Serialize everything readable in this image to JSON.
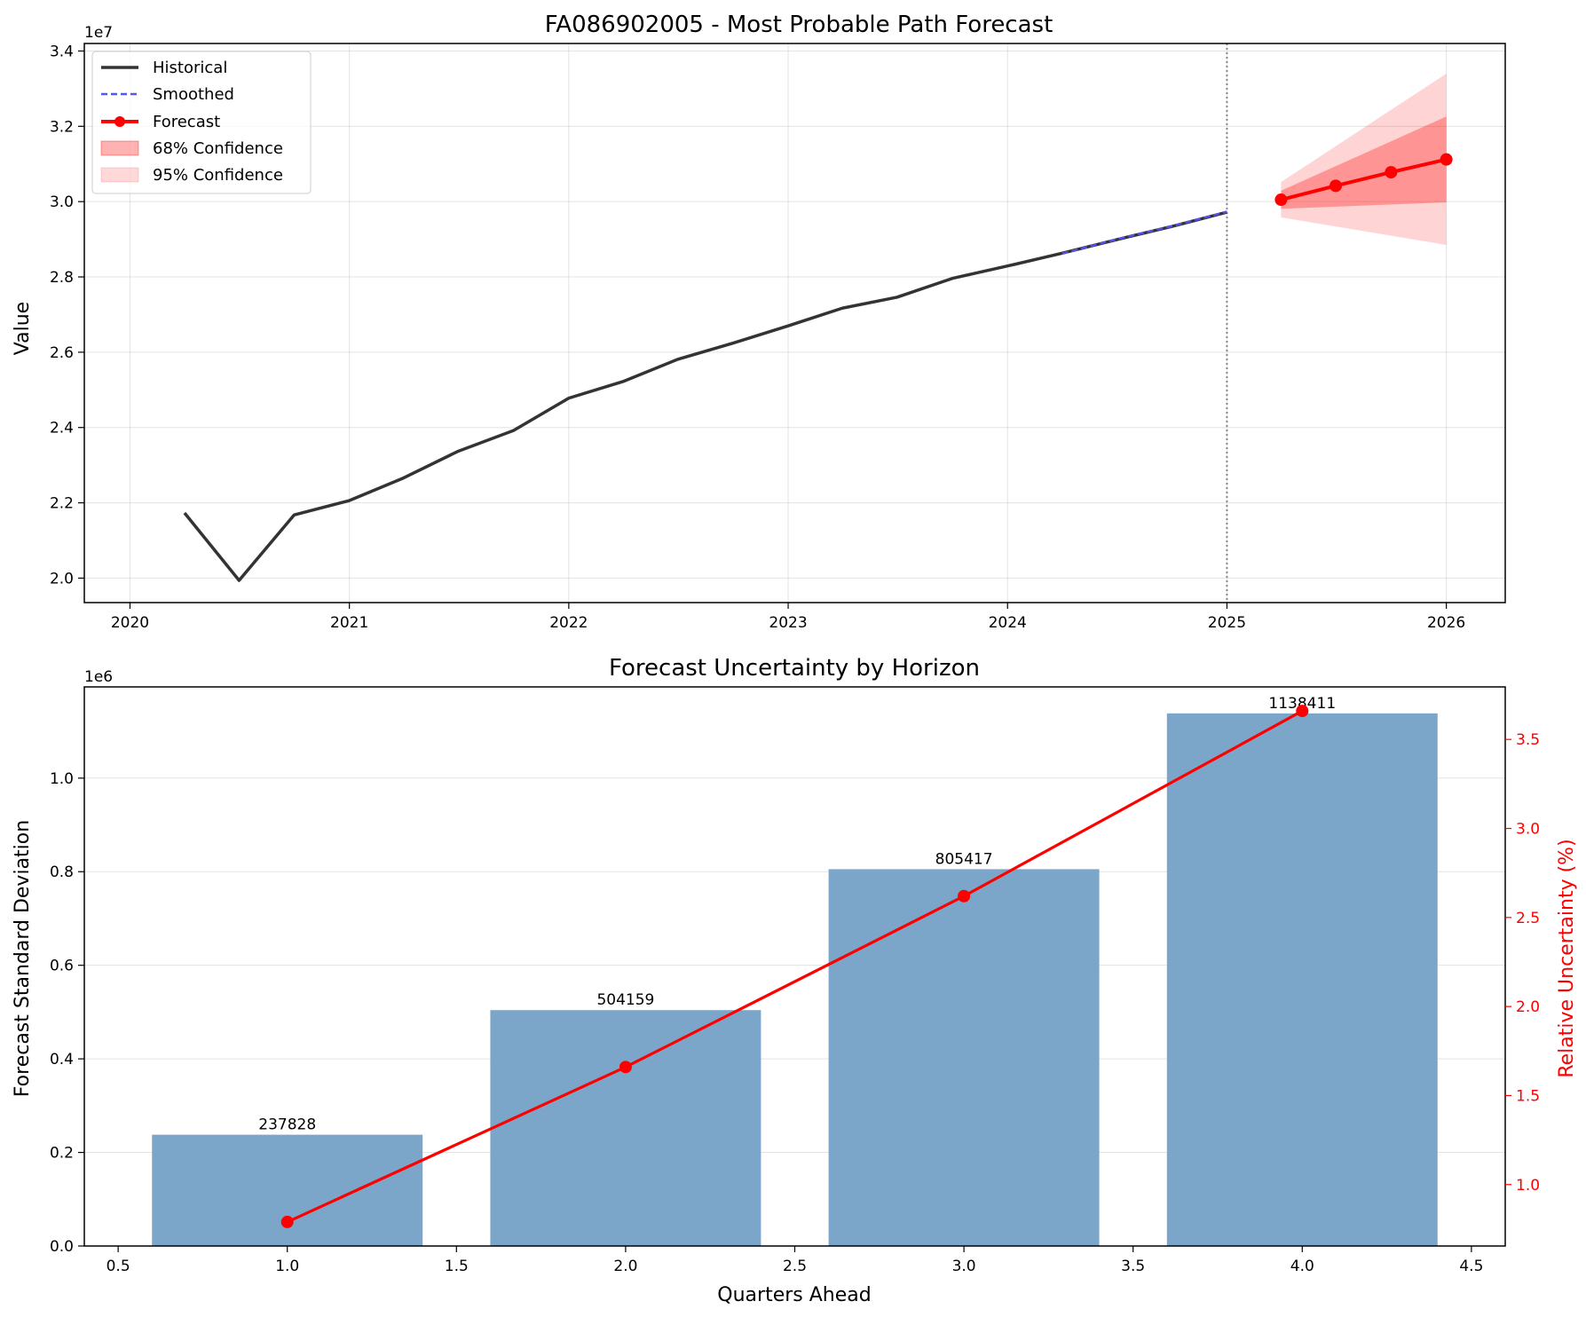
{
  "figure": {
    "colors": {
      "historical": "#333333",
      "smoothed": "#5555ff",
      "forecast": "#ff0000",
      "ci68": "#ff8080",
      "ci95": "#ffcccc",
      "bars": "#7ba6ca",
      "relative": "#ff0000"
    }
  },
  "chart_data": [
    {
      "type": "line",
      "title": "FA086902005 - Most Probable Path Forecast",
      "xlabel": "",
      "ylabel": "Value",
      "y_offset_text": "1e7",
      "x_ticks": [
        "2020",
        "2021",
        "2022",
        "2023",
        "2024",
        "2025",
        "2026"
      ],
      "y_ticks": [
        "2.0",
        "2.2",
        "2.4",
        "2.6",
        "2.8",
        "3.0",
        "3.2",
        "3.4"
      ],
      "ylim": [
        19350000,
        34200000
      ],
      "xlim": [
        "2019-10-17",
        "2026-04-09"
      ],
      "grid": true,
      "legend_position": "top-left",
      "forecast_origin": "2025-01-01",
      "legend": [
        "Historical",
        "Smoothed",
        "Forecast",
        "68% Confidence",
        "95% Confidence"
      ],
      "series": [
        {
          "name": "Historical",
          "style": "solid",
          "x": [
            "2020-04-01",
            "2020-07-01",
            "2020-10-01",
            "2021-01-01",
            "2021-04-01",
            "2021-07-01",
            "2021-10-01",
            "2022-01-01",
            "2022-04-01",
            "2022-07-01",
            "2022-10-01",
            "2023-01-01",
            "2023-04-01",
            "2023-07-01",
            "2023-10-01",
            "2024-01-01",
            "2024-04-01",
            "2024-07-01",
            "2024-10-01",
            "2025-01-01"
          ],
          "values": [
            21730000,
            19940000,
            21680000,
            22060000,
            22660000,
            23370000,
            23920000,
            24780000,
            25220000,
            25810000,
            26240000,
            26700000,
            27170000,
            27460000,
            27960000,
            28290000,
            28630000,
            28990000,
            29340000,
            29720000
          ]
        },
        {
          "name": "Smoothed",
          "style": "dashed",
          "x": [
            "2024-04-01",
            "2024-07-01",
            "2024-10-01",
            "2025-01-01"
          ],
          "values": [
            28620000,
            29000000,
            29350000,
            29730000
          ]
        },
        {
          "name": "Forecast",
          "style": "solid-markers",
          "x": [
            "2025-04-01",
            "2025-07-01",
            "2025-10-01",
            "2026-01-01"
          ],
          "values": [
            30050000,
            30420000,
            30780000,
            31120000
          ]
        }
      ],
      "bands": [
        {
          "name": "68% Confidence",
          "x": [
            "2025-04-01",
            "2026-01-01"
          ],
          "lower": [
            29810000,
            29980000
          ],
          "upper": [
            30290000,
            32260000
          ]
        },
        {
          "name": "95% Confidence",
          "x": [
            "2025-04-01",
            "2026-01-01"
          ],
          "lower": [
            29580000,
            28850000
          ],
          "upper": [
            30520000,
            33400000
          ]
        }
      ]
    },
    {
      "type": "bar",
      "title": "Forecast Uncertainty by Horizon",
      "xlabel": "Quarters Ahead",
      "ylabel": "Forecast Standard Deviation",
      "y2label": "Relative Uncertainty (%)",
      "y_offset_text": "1e6",
      "xlim": [
        0.4,
        4.6
      ],
      "ylim": [
        0,
        1195000
      ],
      "y2lim": [
        0.655,
        3.795
      ],
      "x_ticks": [
        "0.5",
        "1.0",
        "1.5",
        "2.0",
        "2.5",
        "3.0",
        "3.5",
        "4.0",
        "4.5"
      ],
      "y_ticks": [
        "0.0",
        "0.2",
        "0.4",
        "0.6",
        "0.8",
        "1.0"
      ],
      "y2_ticks": [
        "1.0",
        "1.5",
        "2.0",
        "2.5",
        "3.0",
        "3.5"
      ],
      "grid": true,
      "categories": [
        1,
        2,
        3,
        4
      ],
      "bar_width": 0.8,
      "values": [
        237828,
        504159,
        805417,
        1138411
      ],
      "value_labels": [
        "237828",
        "504159",
        "805417",
        "1138411"
      ],
      "relative_uncertainty": [
        0.79,
        1.66,
        2.62,
        3.66
      ]
    }
  ]
}
